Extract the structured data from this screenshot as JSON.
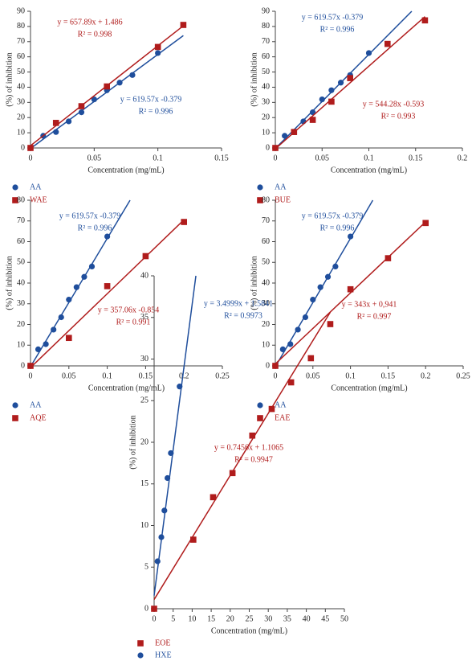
{
  "chart_data": [
    {
      "type": "scatter",
      "xlabel": "Concentration (mg/mL)",
      "ylabel": "(%) of inhibition",
      "xlim": [
        0,
        0.15
      ],
      "xticks": [
        0,
        0.05,
        0.1,
        0.15
      ],
      "ylim": [
        0,
        90
      ],
      "yticks": [
        0,
        10,
        20,
        30,
        40,
        50,
        60,
        70,
        80,
        90
      ],
      "series": [
        {
          "name": "AA",
          "color": "#1f4e9c",
          "marker": "circle",
          "x": [
            0,
            0.01,
            0.02,
            0.03,
            0.04,
            0.05,
            0.06,
            0.07,
            0.08,
            0.1
          ],
          "y": [
            0,
            8,
            10.5,
            17.5,
            23.5,
            32,
            38,
            43,
            48,
            62.5
          ],
          "slope": 619.57,
          "intercept": -0.379,
          "equation": "y = 619.57x -0.379",
          "r2": "R² = 0.996"
        },
        {
          "name": "WAE",
          "color": "#b01c1c",
          "marker": "square",
          "x": [
            0,
            0.02,
            0.04,
            0.06,
            0.1,
            0.12
          ],
          "y": [
            0,
            16.5,
            27.5,
            40.5,
            66.5,
            81
          ],
          "slope": 657.89,
          "intercept": 1.486,
          "equation": "y = 657.89x + 1.486",
          "r2": "R² = 0.998"
        }
      ]
    },
    {
      "type": "scatter",
      "xlabel": "Concentration (mg/mL)",
      "ylabel": "(%) of inhibition",
      "xlim": [
        0,
        0.2
      ],
      "xticks": [
        0,
        0.05,
        0.1,
        0.15,
        0.2
      ],
      "ylim": [
        0,
        90
      ],
      "yticks": [
        0,
        10,
        20,
        30,
        40,
        50,
        60,
        70,
        80,
        90
      ],
      "series": [
        {
          "name": "AA",
          "color": "#1f4e9c",
          "marker": "circle",
          "x": [
            0,
            0.01,
            0.02,
            0.03,
            0.04,
            0.05,
            0.06,
            0.07,
            0.08,
            0.1
          ],
          "y": [
            0,
            8,
            10.5,
            17.5,
            23.5,
            32,
            38,
            43,
            48,
            62.5
          ],
          "slope": 619.57,
          "intercept": -0.379,
          "equation": "y = 619.57x -0.379",
          "r2": "R² = 0.996"
        },
        {
          "name": "BUE",
          "color": "#b01c1c",
          "marker": "square",
          "x": [
            0,
            0.02,
            0.04,
            0.06,
            0.08,
            0.12,
            0.16
          ],
          "y": [
            0,
            10.5,
            18.5,
            30.5,
            46,
            68.5,
            84
          ],
          "slope": 544.28,
          "intercept": -0.593,
          "equation": "y = 544.28x -0.593",
          "r2": "R² = 0.993"
        }
      ]
    },
    {
      "type": "scatter",
      "xlabel": "Concentration (mg/mL)",
      "ylabel": "(%) of inhibition",
      "xlim": [
        0,
        0.25
      ],
      "xticks": [
        0,
        0.05,
        0.1,
        0.15,
        0.2,
        0.25
      ],
      "ylim": [
        0,
        80
      ],
      "yticks": [
        0,
        10,
        20,
        30,
        40,
        50,
        60,
        70,
        80
      ],
      "series": [
        {
          "name": "AA",
          "color": "#1f4e9c",
          "marker": "circle",
          "x": [
            0,
            0.01,
            0.02,
            0.03,
            0.04,
            0.05,
            0.06,
            0.07,
            0.08,
            0.1
          ],
          "y": [
            0,
            8,
            10.5,
            17.5,
            23.5,
            32,
            38,
            43,
            48,
            62.5
          ],
          "slope": 619.57,
          "intercept": -0.379,
          "equation": "y = 619.57x -0.379",
          "r2": "R² = 0.996"
        },
        {
          "name": "AQE",
          "color": "#b01c1c",
          "marker": "square",
          "x": [
            0,
            0.05,
            0.1,
            0.15,
            0.2
          ],
          "y": [
            0,
            13.5,
            38.5,
            53,
            69.5
          ],
          "slope": 357.06,
          "intercept": -0.854,
          "equation": "y = 357.06x -0.854",
          "r2": "R² = 0.991"
        }
      ]
    },
    {
      "type": "scatter",
      "xlabel": "Concentration (mg/mL)",
      "ylabel": "(%) of inhibition",
      "xlim": [
        0,
        0.25
      ],
      "xticks": [
        0,
        0.05,
        0.1,
        0.15,
        0.2,
        0.25
      ],
      "ylim": [
        0,
        80
      ],
      "yticks": [
        0,
        10,
        20,
        30,
        40,
        50,
        60,
        70,
        80
      ],
      "series": [
        {
          "name": "AA",
          "color": "#1f4e9c",
          "marker": "circle",
          "x": [
            0,
            0.01,
            0.02,
            0.03,
            0.04,
            0.05,
            0.06,
            0.07,
            0.08,
            0.1
          ],
          "y": [
            0,
            8,
            10.5,
            17.5,
            23.5,
            32,
            38,
            43,
            48,
            62.5
          ],
          "slope": 619.57,
          "intercept": -0.379,
          "equation": "y = 619.57x -0.379",
          "r2": "R² = 0.996"
        },
        {
          "name": "EAE",
          "color": "#b01c1c",
          "marker": "square",
          "x": [
            0,
            0.1,
            0.15,
            0.2
          ],
          "y": [
            0,
            37,
            52,
            69
          ],
          "slope": 343,
          "intercept": 0.941,
          "equation": "y = 343x + 0,941",
          "r2": "R² = 0.997"
        }
      ]
    },
    {
      "type": "scatter",
      "xlabel": "Concentration (mg/mL)",
      "ylabel": "(%) of inhibition",
      "xlim": [
        0,
        50
      ],
      "xticks": [
        0,
        5,
        10,
        15,
        20,
        25,
        30,
        35,
        40,
        45,
        50
      ],
      "ylim": [
        0,
        40
      ],
      "yticks": [
        0,
        5,
        10,
        15,
        20,
        25,
        30,
        35,
        40
      ],
      "series": [
        {
          "name": "EOE",
          "color": "#b01c1c",
          "marker": "square",
          "x": [
            0,
            10.3,
            15.5,
            20.6,
            25.8,
            30.9,
            36,
            41.2,
            46.3
          ],
          "y": [
            0,
            8.3,
            13.4,
            16.3,
            20.8,
            24,
            27.2,
            30.1,
            34.2
          ],
          "slope": 0.7456,
          "intercept": 1.1065,
          "equation": "y = 0.7456x + 1.1065",
          "r2": "R² = 0.9947"
        },
        {
          "name": "HXE",
          "color": "#1f4e9c",
          "marker": "circle",
          "x": [
            0.9,
            1.9,
            2.7,
            3.5,
            4.4,
            6.7
          ],
          "y": [
            5.7,
            8.6,
            11.8,
            15.7,
            18.7,
            26.7
          ],
          "slope": 3.4999,
          "intercept": 1.5841,
          "equation": "y = 3.4999x + 1.5841",
          "r2": "R² = 0.9973"
        }
      ]
    }
  ]
}
